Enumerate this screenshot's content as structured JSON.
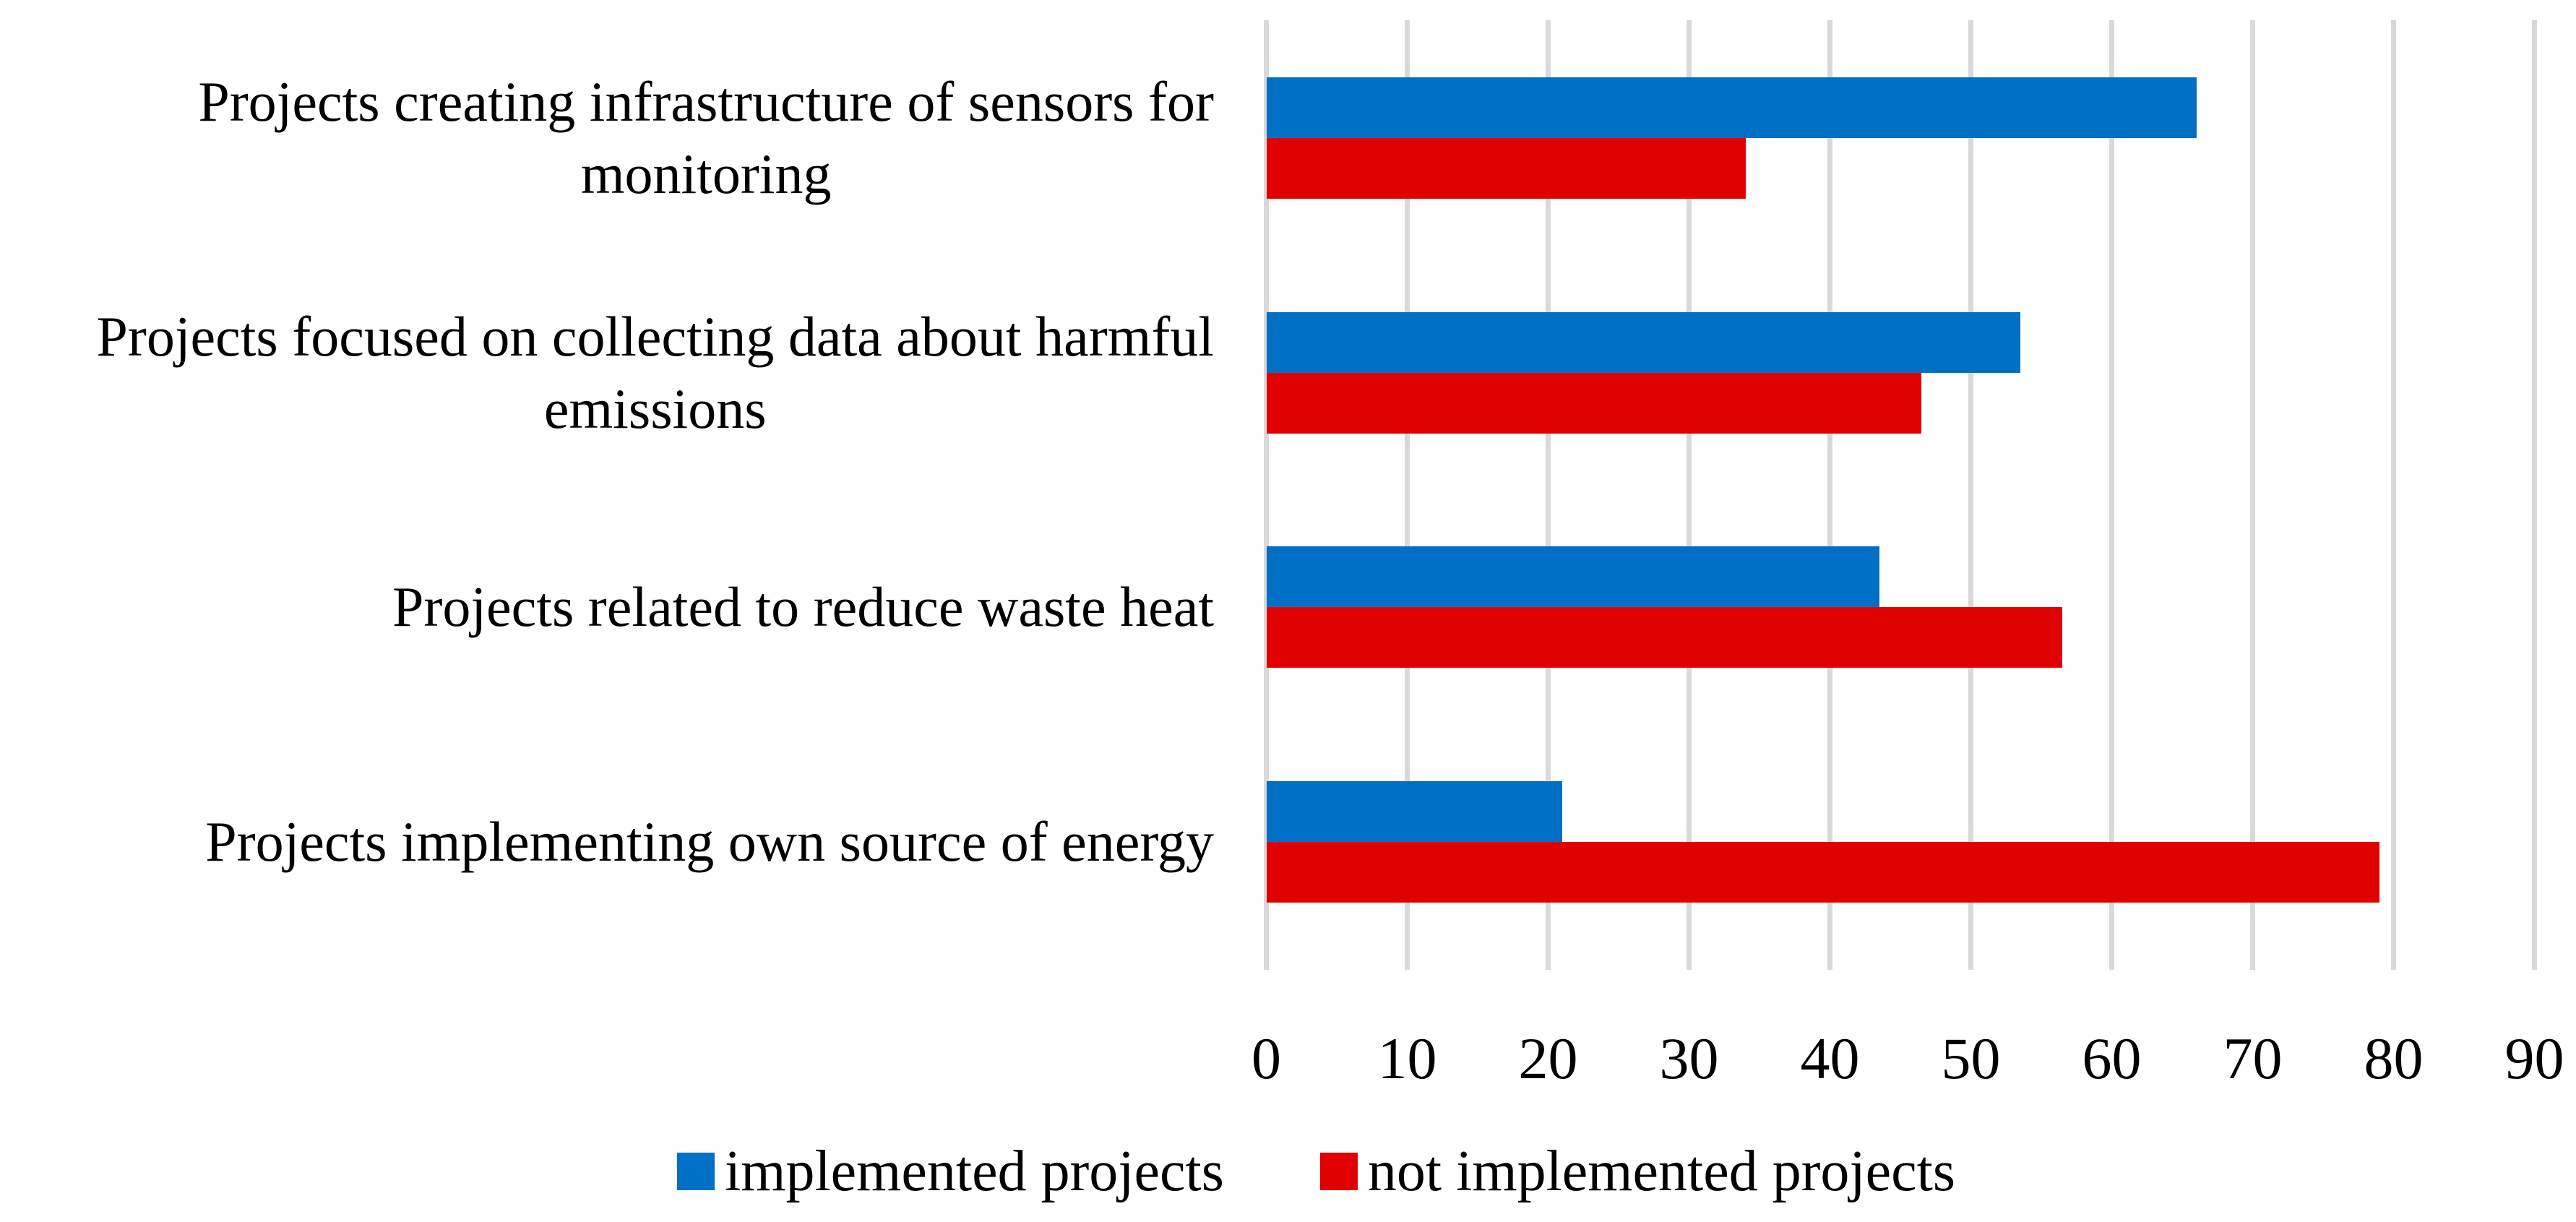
{
  "chart_data": {
    "type": "bar",
    "orientation": "horizontal",
    "title": "",
    "xlabel": "",
    "ylabel": "",
    "xlim": [
      0,
      90
    ],
    "x_ticks": [
      0,
      10,
      20,
      30,
      40,
      50,
      60,
      70,
      80,
      90
    ],
    "grid": true,
    "gridline_color": "#d9d9d9",
    "legend_position": "bottom",
    "categories": [
      "Projects creating infrastructure of sensors for monitoring",
      "Projects focused on collecting data about harmful emissions",
      "Projects related to reduce waste heat",
      "Projects implementing own source of energy"
    ],
    "category_lines": [
      [
        "Projects creating infrastructure of sensors for",
        "monitoring"
      ],
      [
        "Projects focused on collecting data about harmful",
        "emissions"
      ],
      [
        "Projects related to reduce waste heat"
      ],
      [
        "Projects implementing own source of energy"
      ]
    ],
    "series": [
      {
        "name": "implemented projects",
        "color": "#0070c6",
        "values": [
          66,
          53.5,
          43.5,
          21
        ]
      },
      {
        "name": "not implemented projects",
        "color": "#e00000",
        "values": [
          34,
          46.5,
          56.5,
          79
        ]
      }
    ]
  },
  "legend": {
    "implemented_label": "implemented projects",
    "not_implemented_label": "not implemented projects"
  },
  "colors": {
    "implemented": "#0070c6",
    "not_implemented": "#e00000",
    "gridline": "#d9d9d9",
    "text": "#000000",
    "background": "#ffffff"
  }
}
